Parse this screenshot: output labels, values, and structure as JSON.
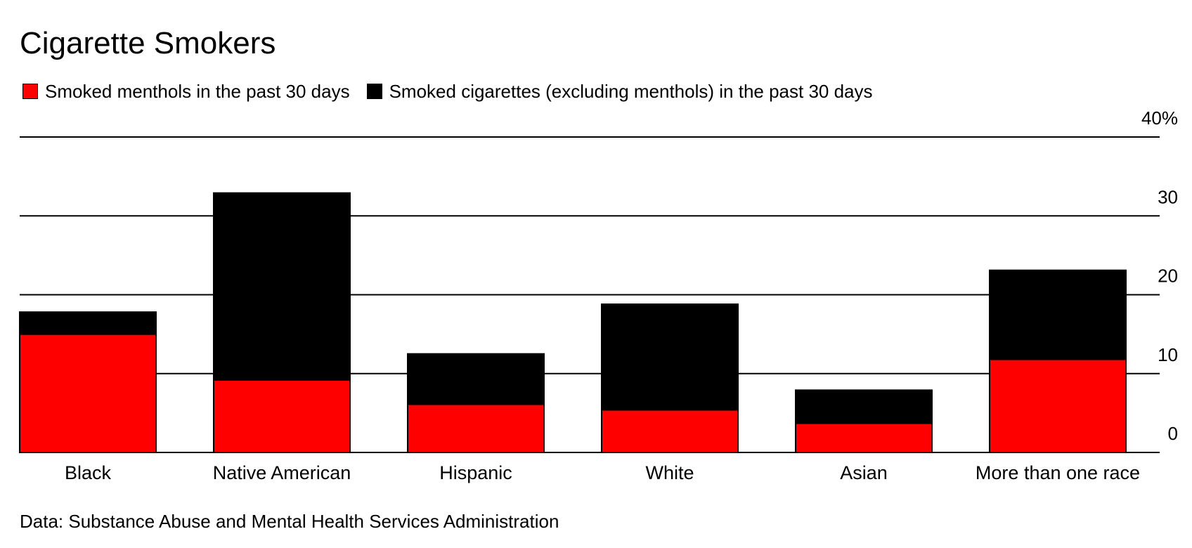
{
  "chart_data": {
    "type": "bar",
    "stacked": true,
    "title": "Cigarette Smokers",
    "categories": [
      "Black",
      "Native American",
      "Hispanic",
      "White",
      "Asian",
      "More than one race"
    ],
    "series": [
      {
        "name": "Smoked menthols in the past 30 days",
        "color": "#ff0000",
        "values": [
          15.0,
          9.2,
          6.1,
          5.4,
          3.7,
          11.8
        ]
      },
      {
        "name": "Smoked cigarettes (excluding menthols) in the past 30 days",
        "color": "#000000",
        "values": [
          2.8,
          23.7,
          6.4,
          13.4,
          4.2,
          11.3
        ]
      }
    ],
    "ylim": [
      0,
      40
    ],
    "yticks": [
      0,
      10,
      20,
      30,
      40
    ],
    "ytick_labels": [
      "0",
      "10",
      "20",
      "30",
      "40%"
    ],
    "yaxis_position": "right",
    "grid": true,
    "legend_position": "top-left"
  },
  "source": "Data: Substance Abuse and Mental Health Services Administration"
}
